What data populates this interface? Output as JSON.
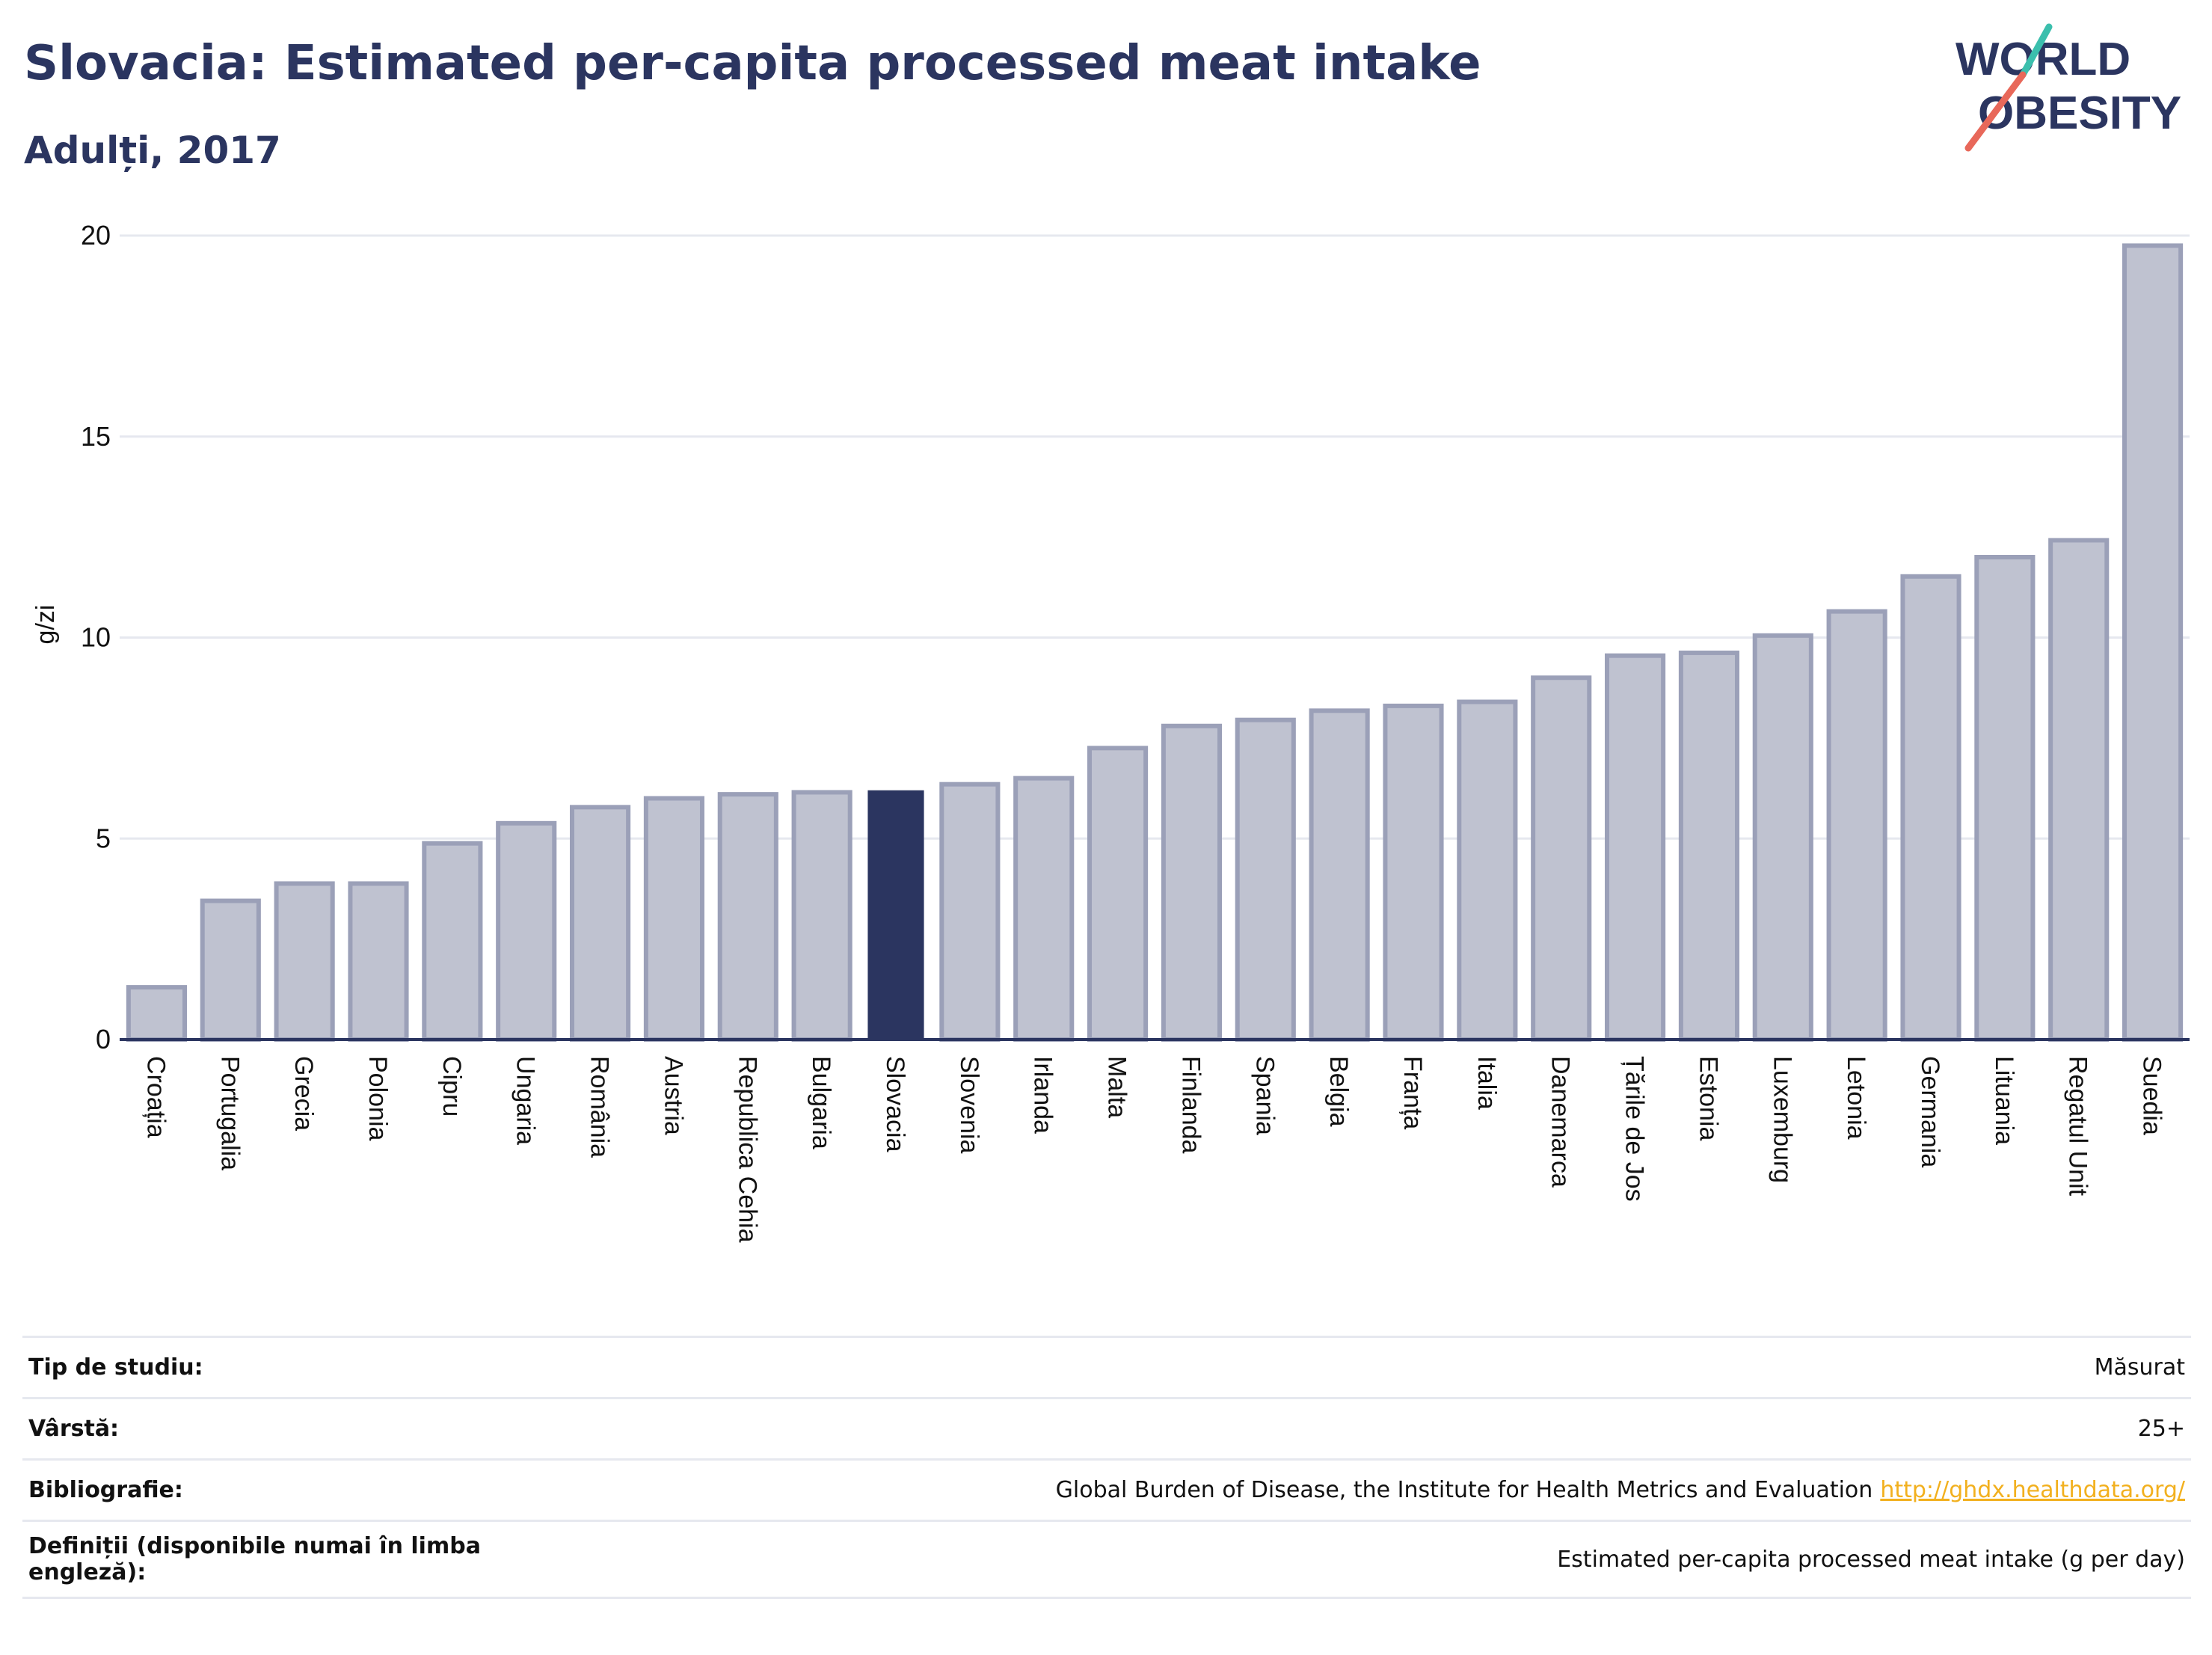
{
  "header": {
    "title": "Slovacia: Estimated per-capita processed meat intake",
    "subtitle": "Adulți, 2017",
    "logo_line1": "WORLD",
    "logo_line2": "OBESITY"
  },
  "colors": {
    "bar_fill": "#bfc2d0",
    "bar_stroke": "#9ba0b8",
    "highlight": "#2b3560",
    "grid": "#e6e8ef",
    "axis": "#2b3560",
    "logo_teal": "#3bbfad",
    "logo_red": "#e8685a",
    "link": "#f2b01e"
  },
  "chart_data": {
    "type": "bar",
    "title": "Slovacia: Estimated per-capita processed meat intake",
    "subtitle": "Adulți, 2017",
    "ylabel": "g/zi",
    "xlabel": "",
    "ylim": [
      0,
      20
    ],
    "yticks": [
      0,
      5,
      10,
      15,
      20
    ],
    "grid": true,
    "highlight": "Slovacia",
    "categories": [
      "Croația",
      "Portugalia",
      "Grecia",
      "Polonia",
      "Cipru",
      "Ungaria",
      "România",
      "Austria",
      "Republica Cehia",
      "Bulgaria",
      "Slovacia",
      "Slovenia",
      "Irlanda",
      "Malta",
      "Finlanda",
      "Spania",
      "Belgia",
      "Franța",
      "Italia",
      "Danemarca",
      "Țările de Jos",
      "Estonia",
      "Luxemburg",
      "Letonia",
      "Germania",
      "Lituania",
      "Regatul Unit",
      "Suedia"
    ],
    "values": [
      1.3,
      3.45,
      3.88,
      3.88,
      4.88,
      5.38,
      5.78,
      6.0,
      6.1,
      6.15,
      6.2,
      6.35,
      6.5,
      7.25,
      7.8,
      7.95,
      8.18,
      8.3,
      8.4,
      9.0,
      9.55,
      9.62,
      10.05,
      10.65,
      11.52,
      12.0,
      12.42,
      19.75
    ]
  },
  "meta": [
    {
      "label": "Tip de studiu:",
      "value": "Măsurat"
    },
    {
      "label": "Vârstă:",
      "value": "25+"
    },
    {
      "label": "Bibliografie:",
      "value": "Global Burden of Disease, the Institute for Health Metrics and Evaluation",
      "link": "http://ghdx.healthdata.org/"
    },
    {
      "label": "Definiții (disponibile numai în limba engleză):",
      "value": "Estimated per-capita processed meat intake (g per day)"
    }
  ]
}
